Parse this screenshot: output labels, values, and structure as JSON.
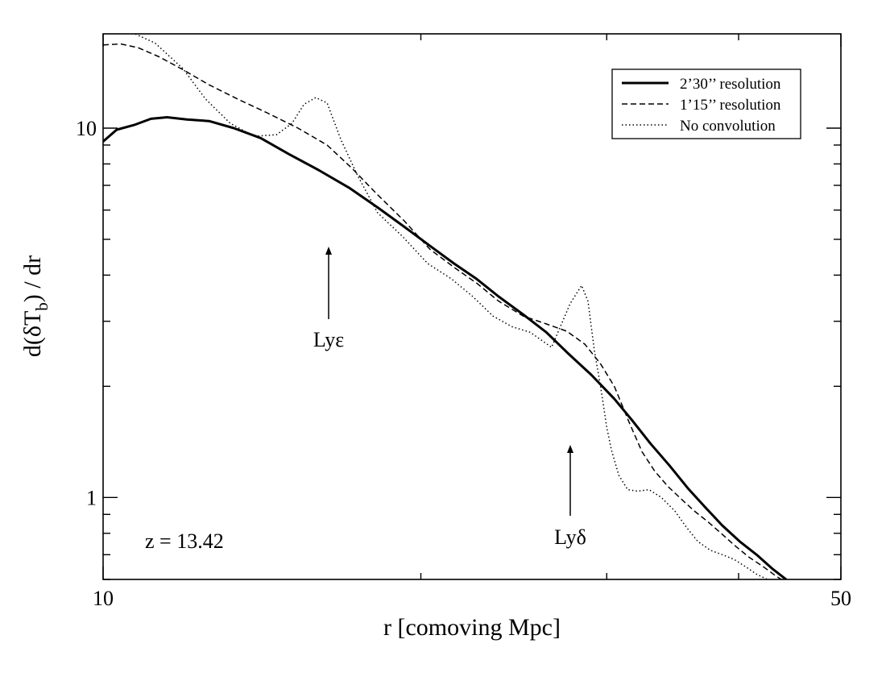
{
  "chart_data": {
    "type": "line",
    "xlabel": "r [comoving Mpc]",
    "ylabel": "d(δT_b) / dr",
    "ylabel_parts": {
      "pre": "d(δT",
      "sub": "b",
      "post": ") / dr"
    },
    "xscale": "log",
    "yscale": "log",
    "xlim": [
      10,
      50
    ],
    "ylim": [
      0.6,
      18
    ],
    "x_tick_labels": [
      "10",
      "50"
    ],
    "y_tick_labels": [
      "1",
      "10"
    ],
    "grid": false,
    "legend_position": "top-right",
    "annotations": {
      "redshift": "z = 13.42",
      "ly_eps": "Lyε",
      "ly_delta": "Lyδ"
    },
    "series": [
      {
        "name": "2’30’’ resolution",
        "style": "solid",
        "x": [
          10.0,
          10.3,
          10.7,
          11.1,
          11.5,
          12.0,
          12.6,
          13.3,
          14.1,
          15.0,
          16.0,
          17.1,
          18.2,
          19.3,
          20.4,
          21.5,
          22.6,
          23.7,
          25.0,
          26.3,
          27.6,
          29.0,
          30.5,
          31.7,
          33.0,
          34.4,
          35.8,
          37.2,
          38.6,
          40.1,
          41.6,
          43.1,
          44.7,
          45.7
        ],
        "values": [
          9.2,
          9.9,
          10.2,
          10.6,
          10.7,
          10.55,
          10.45,
          10.0,
          9.4,
          8.5,
          7.7,
          6.9,
          6.1,
          5.4,
          4.8,
          4.3,
          3.9,
          3.5,
          3.13,
          2.8,
          2.45,
          2.15,
          1.85,
          1.62,
          1.4,
          1.22,
          1.06,
          0.94,
          0.84,
          0.76,
          0.7,
          0.64,
          0.59,
          0.56
        ]
      },
      {
        "name": "1’15’’ resolution",
        "style": "dashed",
        "x": [
          10.0,
          10.4,
          10.8,
          11.3,
          11.9,
          12.6,
          13.4,
          14.3,
          15.3,
          16.3,
          17.2,
          18.2,
          19.3,
          20.4,
          21.5,
          22.6,
          23.7,
          25.0,
          26.3,
          27.5,
          28.6,
          29.6,
          30.5,
          31.5,
          32.4,
          33.3,
          34.3,
          35.3,
          36.3,
          37.4,
          38.5,
          39.7,
          40.9,
          42.2,
          43.5,
          44.8,
          45.7
        ],
        "values": [
          16.8,
          16.9,
          16.5,
          15.6,
          14.4,
          13.1,
          12.0,
          11.0,
          10.0,
          9.0,
          7.8,
          6.6,
          5.6,
          4.7,
          4.2,
          3.8,
          3.4,
          3.1,
          2.95,
          2.82,
          2.6,
          2.3,
          2.0,
          1.6,
          1.33,
          1.18,
          1.07,
          0.99,
          0.92,
          0.86,
          0.8,
          0.74,
          0.69,
          0.65,
          0.61,
          0.58,
          0.56
        ]
      },
      {
        "name": "No convolution",
        "style": "dotted",
        "x": [
          10.5,
          11.2,
          11.9,
          12.5,
          13.2,
          13.9,
          14.6,
          15.1,
          15.5,
          15.9,
          16.3,
          16.8,
          17.4,
          18.2,
          19.2,
          20.3,
          21.4,
          22.4,
          23.4,
          24.4,
          25.4,
          26.6,
          27.7,
          28.4,
          28.8,
          29.2,
          29.6,
          30.0,
          30.3,
          30.8,
          31.4,
          32.1,
          32.9,
          33.8,
          34.8,
          35.7,
          36.6,
          37.6,
          38.6,
          39.6,
          40.6,
          41.6,
          42.6,
          43.6,
          44.3,
          44.9
        ],
        "values": [
          18.5,
          17.0,
          14.5,
          12.0,
          10.3,
          9.5,
          9.6,
          10.3,
          11.6,
          12.1,
          11.7,
          9.3,
          7.5,
          5.9,
          5.1,
          4.3,
          3.9,
          3.5,
          3.1,
          2.9,
          2.8,
          2.55,
          3.35,
          3.75,
          3.4,
          2.5,
          2.0,
          1.55,
          1.35,
          1.15,
          1.05,
          1.04,
          1.05,
          1.0,
          0.92,
          0.83,
          0.76,
          0.72,
          0.7,
          0.68,
          0.65,
          0.62,
          0.6,
          0.58,
          0.57,
          0.56
        ]
      }
    ]
  }
}
